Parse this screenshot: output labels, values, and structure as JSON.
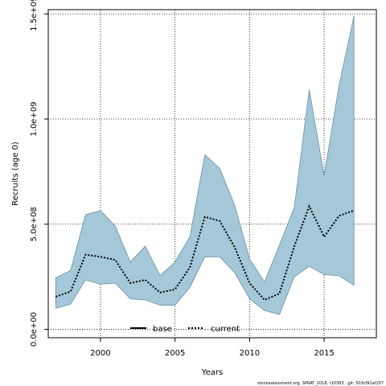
{
  "chart_data": {
    "type": "area",
    "xlabel": "Years",
    "ylabel": "Recruits (age 0)",
    "xlim": [
      1996.5,
      2018.5
    ],
    "ylim": [
      -40000000.0,
      1520000000.0
    ],
    "x_ticks": [
      2000,
      2005,
      2010,
      2015
    ],
    "x_tick_labels": [
      "2000",
      "2005",
      "2010",
      "2015"
    ],
    "y_ticks": [
      0,
      500000000.0,
      1000000000.0,
      1500000000.0
    ],
    "y_tick_labels": [
      "0.0e+00",
      "5.0e+08",
      "1.0e+09",
      "1.5e+09"
    ],
    "grid": true,
    "legend_position": "bottom",
    "legend": [
      {
        "label": "base",
        "style": "solid"
      },
      {
        "label": "current",
        "style": "dotted"
      }
    ],
    "x": [
      1997,
      1998,
      1999,
      2000,
      2001,
      2002,
      2003,
      2004,
      2005,
      2006,
      2007,
      2008,
      2009,
      2010,
      2011,
      2012,
      2013,
      2014,
      2015,
      2016,
      2017
    ],
    "series": [
      {
        "name": "current",
        "values": [
          155000000.0,
          180000000.0,
          355000000.0,
          345000000.0,
          330000000.0,
          220000000.0,
          235000000.0,
          175000000.0,
          190000000.0,
          295000000.0,
          535000000.0,
          515000000.0,
          390000000.0,
          220000000.0,
          140000000.0,
          170000000.0,
          395000000.0,
          585000000.0,
          440000000.0,
          540000000.0,
          565000000.0
        ]
      }
    ],
    "band": {
      "lower": [
        100000000.0,
        120000000.0,
        235000000.0,
        215000000.0,
        220000000.0,
        145000000.0,
        140000000.0,
        115000000.0,
        115000000.0,
        200000000.0,
        345000000.0,
        345000000.0,
        270000000.0,
        145000000.0,
        90000000.0,
        70000000.0,
        250000000.0,
        300000000.0,
        260000000.0,
        255000000.0,
        210000000.0
      ],
      "upper": [
        245000000.0,
        280000000.0,
        545000000.0,
        565000000.0,
        490000000.0,
        320000000.0,
        395000000.0,
        255000000.0,
        320000000.0,
        440000000.0,
        830000000.0,
        765000000.0,
        590000000.0,
        335000000.0,
        225000000.0,
        400000000.0,
        580000000.0,
        1140000000.0,
        730000000.0,
        1160000000.0,
        1490000000.0
      ]
    },
    "band_color": "#a5c8d9",
    "band_edge_color": "#6a8fa3",
    "line_color": "#000000"
  },
  "footnote": "stockassessment.org,  SPRAT_2018,  r10393  ,  git:  503cf91af157"
}
